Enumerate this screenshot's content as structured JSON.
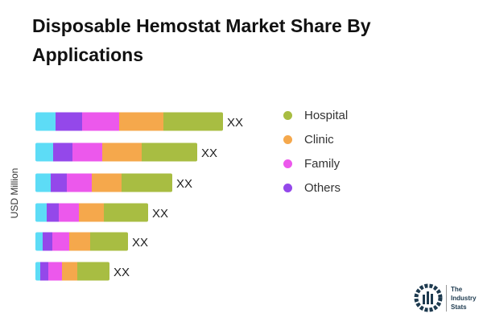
{
  "chart_data": {
    "type": "bar",
    "orientation": "horizontal",
    "stacked": true,
    "title": "Disposable Hemostat Market Share By Applications",
    "ylabel": "USD Million",
    "data_labels": [
      "XX",
      "XX",
      "XX",
      "XX",
      "XX",
      "XX"
    ],
    "series": [
      {
        "color": "#5ddcf6",
        "values": [
          25,
          22,
          19,
          14,
          9,
          6
        ]
      },
      {
        "name": "Others",
        "color": "#9448ea",
        "values": [
          33,
          24,
          20,
          15,
          12,
          10
        ]
      },
      {
        "name": "Family",
        "color": "#ec58ec",
        "values": [
          46,
          37,
          31,
          25,
          21,
          17
        ]
      },
      {
        "name": "Clinic",
        "color": "#f5a84c",
        "values": [
          55,
          49,
          37,
          31,
          26,
          19
        ]
      },
      {
        "name": "Hospital",
        "color": "#a8bd42",
        "values": [
          74,
          69,
          63,
          55,
          47,
          40
        ]
      }
    ],
    "legend": {
      "placement": "right",
      "order": [
        "Hospital",
        "Clinic",
        "Family",
        "Others"
      ]
    }
  },
  "logo": {
    "text": [
      "The",
      "Industry",
      "Stats"
    ]
  }
}
